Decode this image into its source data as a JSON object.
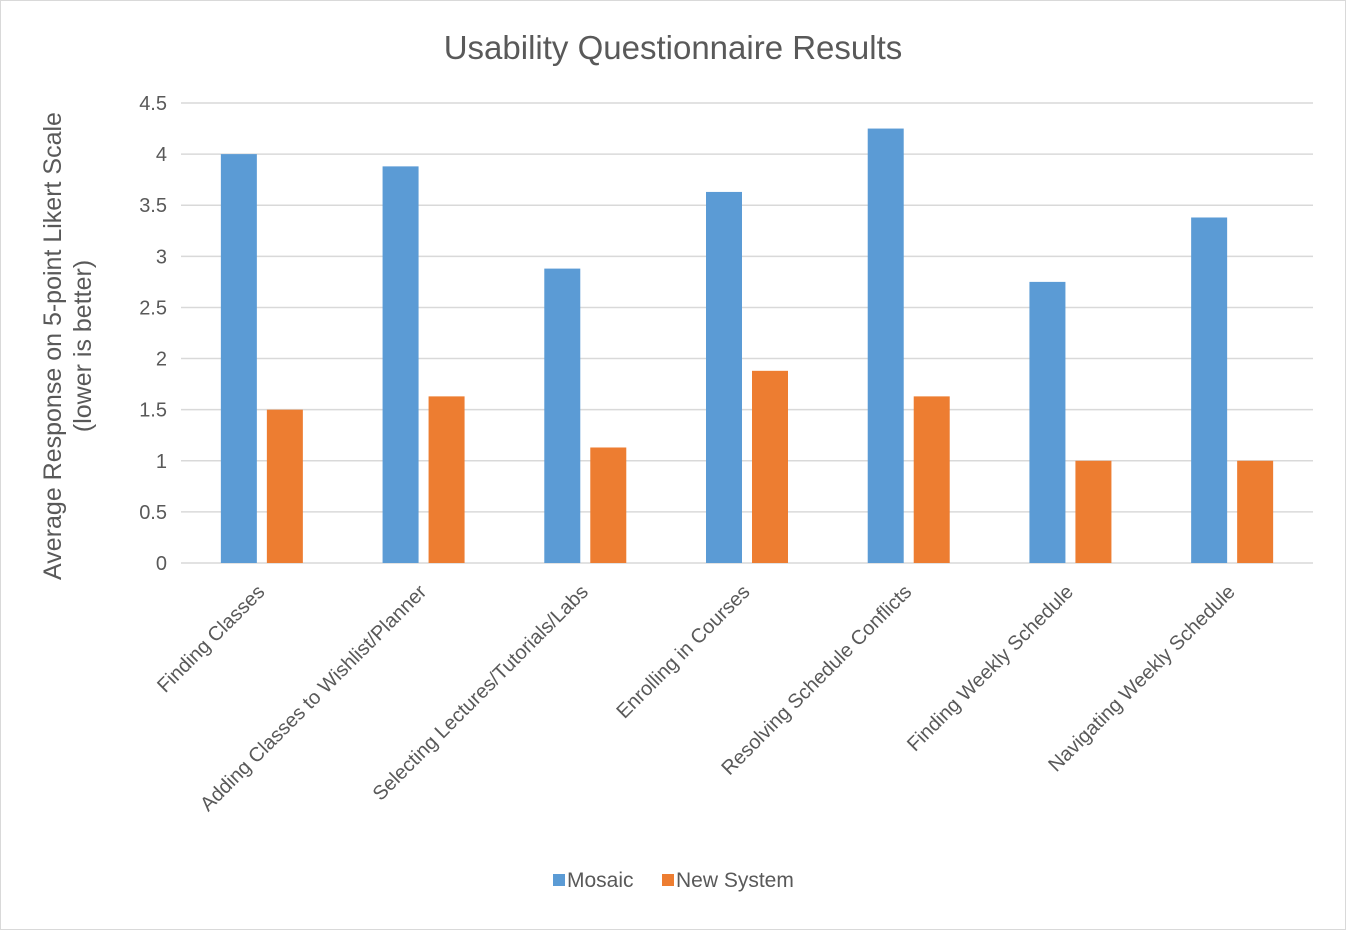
{
  "chart_data": {
    "type": "bar",
    "title": "Usability Questionnaire Results",
    "ylabel": [
      "Average Response on 5-point Likert Scale",
      "(lower is better)"
    ],
    "xlabel": "",
    "ylim": [
      0,
      4.5
    ],
    "yticks": [
      "0",
      "0.5",
      "1",
      "1.5",
      "2",
      "2.5",
      "3",
      "3.5",
      "4",
      "4.5"
    ],
    "categories": [
      "Finding Classes",
      "Adding Classes to Wishlist/Planner",
      "Selecting Lectures/Tutorials/Labs",
      "Enrolling in Courses",
      "Resolving Schedule Conflicts",
      "Finding Weekly Schedule",
      "Navigating Weekly Schedule"
    ],
    "series": [
      {
        "name": "Mosaic",
        "color": "#5b9bd5",
        "values": [
          4.0,
          3.88,
          2.88,
          3.63,
          4.25,
          2.75,
          3.38
        ]
      },
      {
        "name": "New System",
        "color": "#ed7d31",
        "values": [
          1.5,
          1.63,
          1.13,
          1.88,
          1.63,
          1.0,
          1.0
        ]
      }
    ],
    "grid": true,
    "legend_position": "bottom"
  }
}
